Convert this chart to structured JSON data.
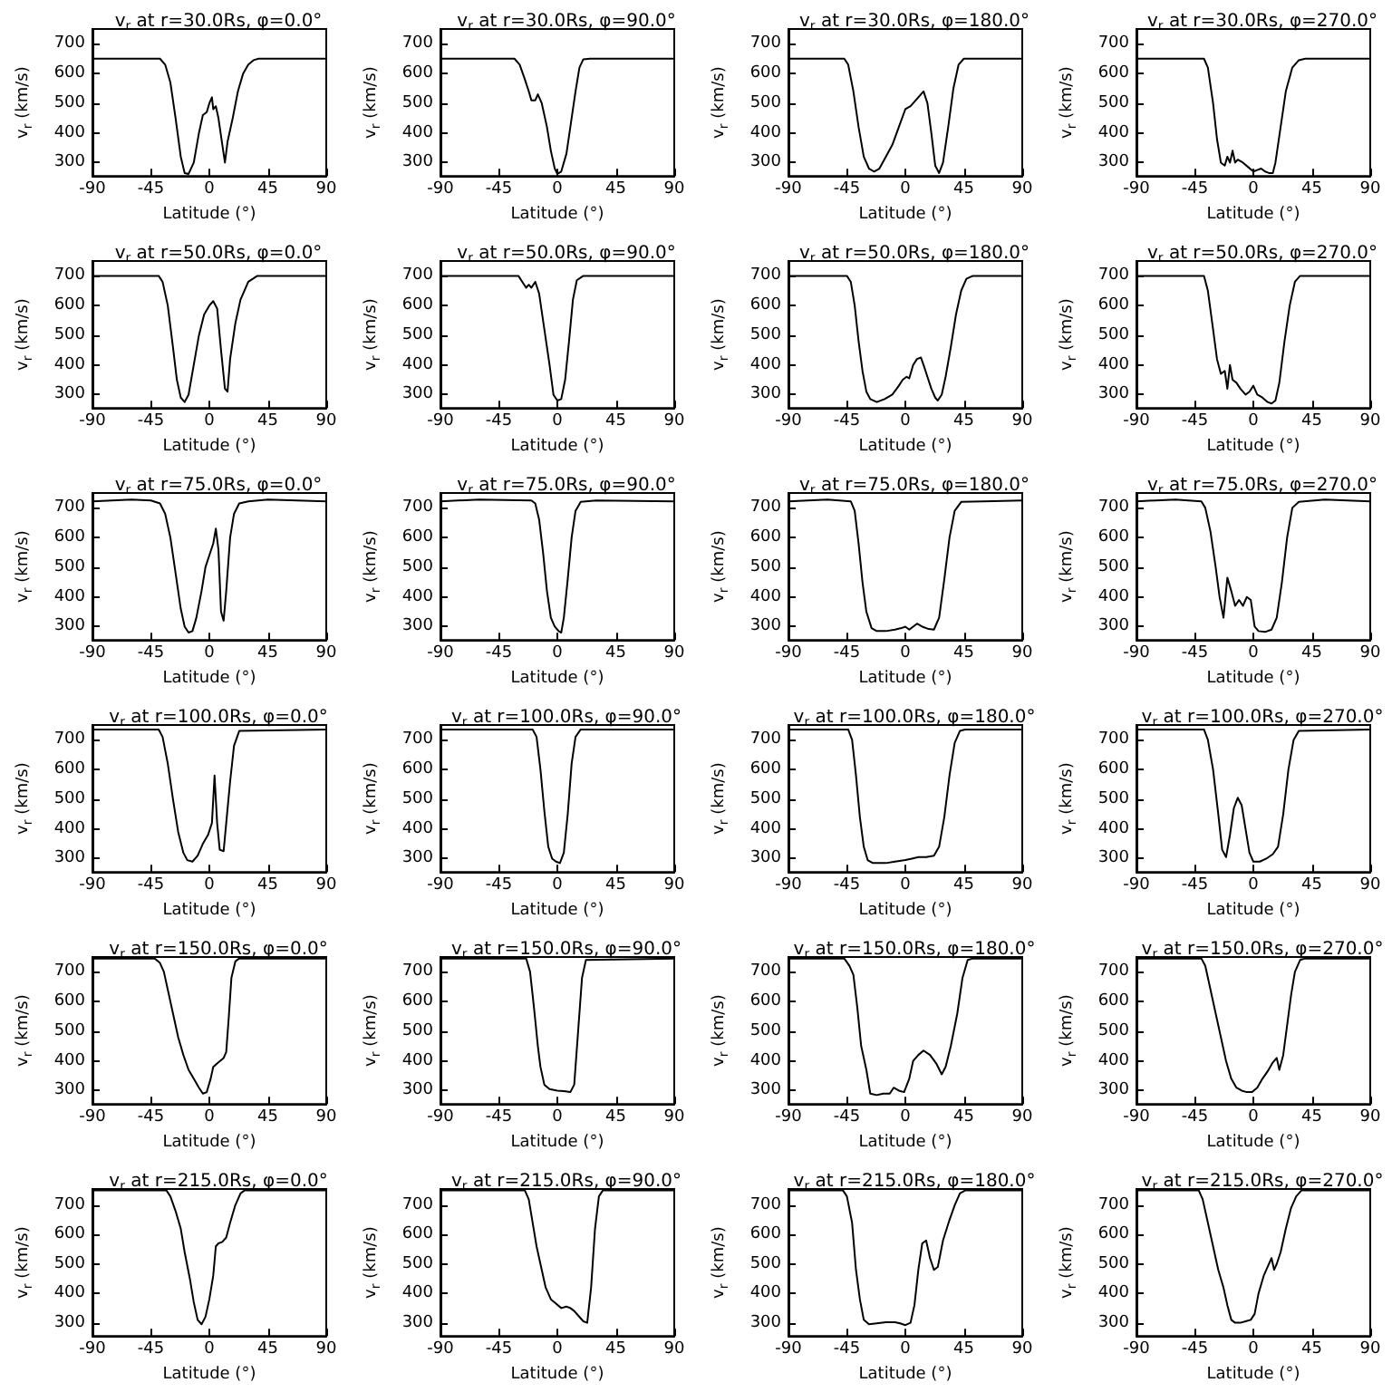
{
  "chart_data": [
    {
      "type": "line",
      "title": "v$_{r}$ at r=30.0Rs, φ=0.0°",
      "xlabel": "Latitude (°)",
      "ylabel": "v$_{r}$ (km/s)",
      "color": "#000000",
      "xlim": [
        -90,
        90
      ],
      "ylim": [
        255,
        750
      ],
      "xticks": [
        -90,
        -45,
        0,
        45,
        90
      ],
      "yticks": [
        300,
        400,
        500,
        600,
        700
      ],
      "x": [
        -90,
        -38,
        -34,
        -30,
        -26,
        -22,
        -19,
        -16,
        -12,
        -8,
        -5,
        -2,
        0,
        2,
        3,
        5,
        7,
        10,
        12,
        14,
        18,
        22,
        26,
        30,
        34,
        38,
        90
      ],
      "values": [
        650,
        650,
        630,
        570,
        450,
        320,
        265,
        262,
        300,
        400,
        460,
        470,
        500,
        520,
        480,
        490,
        450,
        360,
        300,
        370,
        450,
        540,
        600,
        630,
        645,
        650,
        650
      ]
    },
    {
      "type": "line",
      "title": "v$_{r}$ at r=30.0Rs, φ=90.0°",
      "xlabel": "Latitude (°)",
      "ylabel": "v$_{r}$ (km/s)",
      "color": "#000000",
      "xlim": [
        -90,
        90
      ],
      "ylim": [
        255,
        750
      ],
      "xticks": [
        -90,
        -45,
        0,
        45,
        90
      ],
      "yticks": [
        300,
        400,
        500,
        600,
        700
      ],
      "x": [
        -90,
        -33,
        -29,
        -25,
        -22,
        -20,
        -17,
        -15,
        -12,
        -8,
        -5,
        -2,
        0,
        3,
        7,
        10,
        14,
        17,
        20,
        25,
        90
      ],
      "values": [
        650,
        650,
        630,
        580,
        540,
        510,
        510,
        530,
        500,
        420,
        340,
        280,
        262,
        270,
        330,
        420,
        540,
        620,
        648,
        650,
        650
      ]
    },
    {
      "type": "line",
      "title": "v$_{r}$ at r=30.0Rs, φ=180.0°",
      "xlabel": "Latitude (°)",
      "ylabel": "v$_{r}$ (km/s)",
      "color": "#000000",
      "xlim": [
        -90,
        90
      ],
      "ylim": [
        255,
        750
      ],
      "xticks": [
        -90,
        -45,
        0,
        45,
        90
      ],
      "yticks": [
        300,
        400,
        500,
        600,
        700
      ],
      "x": [
        -90,
        -47,
        -44,
        -40,
        -36,
        -32,
        -28,
        -24,
        -20,
        -15,
        -10,
        -5,
        0,
        4,
        8,
        12,
        14,
        17,
        20,
        23,
        26,
        29,
        33,
        37,
        41,
        45,
        90
      ],
      "values": [
        650,
        650,
        630,
        540,
        420,
        320,
        280,
        270,
        280,
        320,
        360,
        420,
        480,
        490,
        510,
        530,
        540,
        500,
        400,
        290,
        265,
        300,
        420,
        550,
        630,
        650,
        650
      ]
    },
    {
      "type": "line",
      "title": "v$_{r}$ at r=30.0Rs, φ=270.0°",
      "xlabel": "Latitude (°)",
      "ylabel": "v$_{r}$ (km/s)",
      "color": "#000000",
      "xlim": [
        -90,
        90
      ],
      "ylim": [
        255,
        750
      ],
      "xticks": [
        -90,
        -45,
        0,
        45,
        90
      ],
      "yticks": [
        300,
        400,
        500,
        600,
        700
      ],
      "x": [
        -90,
        -38,
        -35,
        -31,
        -28,
        -25,
        -22,
        -20,
        -18,
        -16,
        -14,
        -12,
        -8,
        -4,
        0,
        3,
        6,
        9,
        12,
        15,
        17,
        21,
        25,
        30,
        35,
        40,
        90
      ],
      "values": [
        650,
        650,
        620,
        500,
        380,
        300,
        290,
        320,
        300,
        340,
        300,
        310,
        300,
        285,
        270,
        275,
        280,
        270,
        265,
        265,
        300,
        420,
        540,
        620,
        645,
        650,
        650
      ]
    },
    {
      "type": "line",
      "title": "v$_{r}$ at r=50.0Rs, φ=0.0°",
      "xlabel": "Latitude (°)",
      "ylabel": "v$_{r}$ (km/s)",
      "color": "#000000",
      "xlim": [
        -90,
        90
      ],
      "ylim": [
        255,
        750
      ],
      "xticks": [
        -90,
        -45,
        0,
        45,
        90
      ],
      "yticks": [
        300,
        400,
        500,
        600,
        700
      ],
      "x": [
        -90,
        -39,
        -36,
        -32,
        -28,
        -25,
        -22,
        -19,
        -16,
        -12,
        -8,
        -4,
        0,
        3,
        6,
        9,
        12,
        14,
        16,
        20,
        24,
        30,
        37,
        90
      ],
      "values": [
        700,
        700,
        680,
        600,
        460,
        350,
        290,
        275,
        300,
        400,
        500,
        570,
        600,
        615,
        590,
        450,
        320,
        310,
        420,
        540,
        620,
        680,
        700,
        700
      ]
    },
    {
      "type": "line",
      "title": "v$_{r}$ at r=50.0Rs, φ=90.0°",
      "xlabel": "Latitude (°)",
      "ylabel": "v$_{r}$ (km/s)",
      "color": "#000000",
      "xlim": [
        -90,
        90
      ],
      "ylim": [
        255,
        750
      ],
      "xticks": [
        -90,
        -45,
        0,
        45,
        90
      ],
      "yticks": [
        300,
        400,
        500,
        600,
        700
      ],
      "x": [
        -90,
        -30,
        -27,
        -24,
        -22,
        -20,
        -17,
        -14,
        -10,
        -6,
        -3,
        0,
        3,
        6,
        9,
        12,
        15,
        20,
        90
      ],
      "values": [
        700,
        700,
        680,
        660,
        670,
        660,
        680,
        640,
        520,
        400,
        300,
        280,
        285,
        350,
        480,
        620,
        685,
        700,
        700
      ]
    },
    {
      "type": "line",
      "title": "v$_{r}$ at r=50.0Rs, φ=180.0°",
      "xlabel": "Latitude (°)",
      "ylabel": "v$_{r}$ (km/s)",
      "color": "#000000",
      "xlim": [
        -90,
        90
      ],
      "ylim": [
        255,
        750
      ],
      "xticks": [
        -90,
        -45,
        0,
        45,
        90
      ],
      "yticks": [
        300,
        400,
        500,
        600,
        700
      ],
      "x": [
        -90,
        -45,
        -42,
        -39,
        -36,
        -33,
        -30,
        -27,
        -22,
        -16,
        -10,
        -5,
        -2,
        1,
        3,
        6,
        9,
        12,
        14,
        17,
        20,
        23,
        25,
        28,
        31,
        35,
        39,
        43,
        47,
        52,
        90
      ],
      "values": [
        700,
        700,
        680,
        600,
        480,
        380,
        310,
        285,
        275,
        285,
        300,
        330,
        350,
        360,
        355,
        400,
        420,
        425,
        400,
        360,
        320,
        290,
        280,
        300,
        360,
        460,
        570,
        650,
        690,
        700,
        700
      ]
    },
    {
      "type": "line",
      "title": "v$_{r}$ at r=50.0Rs, φ=270.0°",
      "xlabel": "Latitude (°)",
      "ylabel": "v$_{r}$ (km/s)",
      "color": "#000000",
      "xlim": [
        -90,
        90
      ],
      "ylim": [
        255,
        750
      ],
      "xticks": [
        -90,
        -45,
        0,
        45,
        90
      ],
      "yticks": [
        300,
        400,
        500,
        600,
        700
      ],
      "x": [
        -90,
        -38,
        -35,
        -31,
        -28,
        -25,
        -22,
        -20,
        -18,
        -16,
        -13,
        -10,
        -6,
        -3,
        0,
        3,
        7,
        11,
        14,
        17,
        20,
        24,
        28,
        32,
        36,
        90
      ],
      "values": [
        700,
        700,
        650,
        520,
        420,
        370,
        380,
        320,
        400,
        350,
        340,
        320,
        300,
        310,
        330,
        300,
        290,
        275,
        270,
        280,
        340,
        480,
        600,
        680,
        700,
        700
      ]
    },
    {
      "type": "line",
      "title": "v$_{r}$ at r=75.0Rs, φ=0.0°",
      "xlabel": "Latitude (°)",
      "ylabel": "v$_{r}$ (km/s)",
      "color": "#000000",
      "xlim": [
        -90,
        90
      ],
      "ylim": [
        255,
        750
      ],
      "xticks": [
        -90,
        -45,
        0,
        45,
        90
      ],
      "yticks": [
        300,
        400,
        500,
        600,
        700
      ],
      "x": [
        -90,
        -60,
        -45,
        -38,
        -34,
        -30,
        -26,
        -22,
        -19,
        -16,
        -13,
        -10,
        -6,
        -3,
        0,
        3,
        5,
        7,
        9,
        11,
        13,
        16,
        19,
        23,
        30,
        45,
        90
      ],
      "values": [
        722,
        728,
        725,
        715,
        680,
        600,
        480,
        360,
        300,
        280,
        285,
        330,
        420,
        500,
        540,
        580,
        630,
        560,
        350,
        320,
        420,
        600,
        680,
        715,
        722,
        728,
        722
      ]
    },
    {
      "type": "line",
      "title": "v$_{r}$ at r=75.0Rs, φ=90.0°",
      "xlabel": "Latitude (°)",
      "ylabel": "v$_{r}$ (km/s)",
      "color": "#000000",
      "xlim": [
        -90,
        90
      ],
      "ylim": [
        255,
        750
      ],
      "xticks": [
        -90,
        -45,
        0,
        45,
        90
      ],
      "yticks": [
        300,
        400,
        500,
        600,
        700
      ],
      "x": [
        -90,
        -60,
        -20,
        -17,
        -14,
        -11,
        -8,
        -5,
        -2,
        1,
        3,
        5,
        8,
        11,
        14,
        18,
        30,
        90
      ],
      "values": [
        722,
        728,
        725,
        715,
        660,
        550,
        420,
        330,
        300,
        285,
        280,
        330,
        460,
        600,
        690,
        720,
        725,
        722
      ]
    },
    {
      "type": "line",
      "title": "v$_{r}$ at r=75.0Rs, φ=180.0°",
      "xlabel": "Latitude (°)",
      "ylabel": "v$_{r}$ (km/s)",
      "color": "#000000",
      "xlim": [
        -90,
        90
      ],
      "ylim": [
        255,
        750
      ],
      "xticks": [
        -90,
        -45,
        0,
        45,
        90
      ],
      "yticks": [
        300,
        400,
        500,
        600,
        700
      ],
      "x": [
        -90,
        -60,
        -42,
        -39,
        -36,
        -33,
        -30,
        -26,
        -22,
        -15,
        -8,
        -3,
        0,
        3,
        6,
        9,
        13,
        18,
        22,
        26,
        30,
        34,
        38,
        43,
        60,
        90
      ],
      "values": [
        722,
        728,
        722,
        690,
        580,
        450,
        350,
        295,
        285,
        285,
        290,
        295,
        300,
        290,
        300,
        310,
        300,
        292,
        290,
        330,
        460,
        600,
        690,
        720,
        722,
        725
      ]
    },
    {
      "type": "line",
      "title": "v$_{r}$ at r=75.0Rs, φ=270.0°",
      "xlabel": "Latitude (°)",
      "ylabel": "v$_{r}$ (km/s)",
      "color": "#000000",
      "xlim": [
        -90,
        90
      ],
      "ylim": [
        255,
        750
      ],
      "xticks": [
        -90,
        -45,
        0,
        45,
        90
      ],
      "yticks": [
        300,
        400,
        500,
        600,
        700
      ],
      "x": [
        -90,
        -60,
        -40,
        -37,
        -33,
        -29,
        -26,
        -23,
        -20,
        -17,
        -14,
        -11,
        -8,
        -5,
        -2,
        1,
        4,
        9,
        14,
        18,
        22,
        26,
        30,
        35,
        55,
        90
      ],
      "values": [
        722,
        728,
        722,
        700,
        620,
        500,
        400,
        330,
        465,
        420,
        370,
        390,
        370,
        400,
        390,
        300,
        285,
        282,
        290,
        330,
        450,
        600,
        700,
        720,
        728,
        722
      ]
    },
    {
      "type": "line",
      "title": "v$_{r}$ at r=100.0Rs, φ=0.0°",
      "xlabel": "Latitude (°)",
      "ylabel": "v$_{r}$ (km/s)",
      "color": "#000000",
      "xlim": [
        -90,
        90
      ],
      "ylim": [
        255,
        750
      ],
      "xticks": [
        -90,
        -45,
        0,
        45,
        90
      ],
      "yticks": [
        300,
        400,
        500,
        600,
        700
      ],
      "x": [
        -90,
        -39,
        -36,
        -32,
        -28,
        -24,
        -20,
        -17,
        -13,
        -9,
        -5,
        -1,
        2,
        4,
        6,
        8,
        11,
        13,
        16,
        19,
        23,
        90
      ],
      "values": [
        735,
        735,
        710,
        620,
        500,
        390,
        320,
        295,
        290,
        310,
        350,
        380,
        420,
        580,
        420,
        330,
        325,
        420,
        560,
        680,
        730,
        735
      ]
    },
    {
      "type": "line",
      "title": "v$_{r}$ at r=100.0Rs, φ=90.0°",
      "xlabel": "Latitude (°)",
      "ylabel": "v$_{r}$ (km/s)",
      "color": "#000000",
      "xlim": [
        -90,
        90
      ],
      "ylim": [
        255,
        750
      ],
      "xticks": [
        -90,
        -45,
        0,
        45,
        90
      ],
      "yticks": [
        300,
        400,
        500,
        600,
        700
      ],
      "x": [
        -90,
        -19,
        -16,
        -13,
        -10,
        -7,
        -4,
        -1,
        2,
        5,
        8,
        11,
        14,
        18,
        90
      ],
      "values": [
        735,
        735,
        710,
        600,
        460,
        340,
        300,
        290,
        285,
        320,
        450,
        620,
        710,
        735,
        735
      ]
    },
    {
      "type": "line",
      "title": "v$_{r}$ at r=100.0Rs, φ=180.0°",
      "xlabel": "Latitude (°)",
      "ylabel": "v$_{r}$ (km/s)",
      "color": "#000000",
      "xlim": [
        -90,
        90
      ],
      "ylim": [
        255,
        750
      ],
      "xticks": [
        -90,
        -45,
        0,
        45,
        90
      ],
      "yticks": [
        300,
        400,
        500,
        600,
        700
      ],
      "x": [
        -90,
        -44,
        -41,
        -38,
        -35,
        -32,
        -29,
        -25,
        -15,
        -8,
        0,
        5,
        10,
        16,
        22,
        26,
        30,
        34,
        38,
        42,
        46,
        90
      ],
      "values": [
        735,
        735,
        700,
        580,
        440,
        340,
        295,
        285,
        285,
        290,
        295,
        300,
        305,
        305,
        310,
        340,
        440,
        580,
        690,
        730,
        735,
        735
      ]
    },
    {
      "type": "line",
      "title": "v$_{r}$ at r=100.0Rs, φ=270.0°",
      "xlabel": "Latitude (°)",
      "ylabel": "v$_{r}$ (km/s)",
      "color": "#000000",
      "xlim": [
        -90,
        90
      ],
      "ylim": [
        255,
        750
      ],
      "xticks": [
        -90,
        -45,
        0,
        45,
        90
      ],
      "yticks": [
        300,
        400,
        500,
        600,
        700
      ],
      "x": [
        -90,
        -38,
        -35,
        -31,
        -27,
        -24,
        -21,
        -18,
        -15,
        -12,
        -9,
        -6,
        -3,
        0,
        5,
        10,
        15,
        19,
        23,
        27,
        31,
        35,
        90
      ],
      "values": [
        735,
        735,
        700,
        600,
        450,
        330,
        305,
        380,
        470,
        505,
        480,
        400,
        320,
        290,
        290,
        300,
        315,
        340,
        450,
        600,
        700,
        730,
        735
      ]
    },
    {
      "type": "line",
      "title": "v$_{r}$ at r=150.0Rs, φ=0.0°",
      "xlabel": "Latitude (°)",
      "ylabel": "v$_{r}$ (km/s)",
      "color": "#000000",
      "xlim": [
        -90,
        90
      ],
      "ylim": [
        255,
        750
      ],
      "xticks": [
        -90,
        -45,
        0,
        45,
        90
      ],
      "yticks": [
        300,
        400,
        500,
        600,
        700
      ],
      "x": [
        -90,
        -42,
        -38,
        -35,
        -32,
        -28,
        -24,
        -20,
        -16,
        -12,
        -8,
        -5,
        -2,
        1,
        3,
        7,
        11,
        13,
        15,
        17,
        20,
        23,
        90
      ],
      "values": [
        745,
        745,
        730,
        700,
        640,
        560,
        480,
        420,
        370,
        340,
        310,
        290,
        295,
        340,
        380,
        395,
        410,
        430,
        550,
        680,
        735,
        745,
        745
      ]
    },
    {
      "type": "line",
      "title": "v$_{r}$ at r=150.0Rs, φ=90.0°",
      "xlabel": "Latitude (°)",
      "ylabel": "v$_{r}$ (km/s)",
      "color": "#000000",
      "xlim": [
        -90,
        90
      ],
      "ylim": [
        255,
        750
      ],
      "xticks": [
        -90,
        -45,
        0,
        45,
        90
      ],
      "yticks": [
        300,
        400,
        500,
        600,
        700
      ],
      "x": [
        -90,
        -24,
        -21,
        -18,
        -15,
        -13,
        -10,
        -6,
        0,
        5,
        10,
        13,
        16,
        19,
        22,
        90
      ],
      "values": [
        745,
        745,
        700,
        580,
        450,
        380,
        320,
        305,
        300,
        298,
        295,
        320,
        500,
        680,
        740,
        745
      ]
    },
    {
      "type": "line",
      "title": "v$_{r}$ at r=150.0Rs, φ=180.0°",
      "xlabel": "Latitude (°)",
      "ylabel": "v$_{r}$ (km/s)",
      "color": "#000000",
      "xlim": [
        -90,
        90
      ],
      "ylim": [
        255,
        750
      ],
      "xticks": [
        -90,
        -45,
        0,
        45,
        90
      ],
      "yticks": [
        300,
        400,
        500,
        600,
        700
      ],
      "x": [
        -90,
        -47,
        -43,
        -40,
        -37,
        -34,
        -30,
        -27,
        -22,
        -17,
        -12,
        -9,
        -5,
        -1,
        3,
        6,
        10,
        14,
        19,
        24,
        28,
        31,
        35,
        40,
        44,
        48,
        52,
        90
      ],
      "values": [
        745,
        745,
        720,
        690,
        580,
        450,
        370,
        290,
        285,
        290,
        290,
        310,
        300,
        295,
        340,
        400,
        420,
        435,
        420,
        390,
        355,
        380,
        450,
        560,
        680,
        740,
        745,
        745
      ]
    },
    {
      "type": "line",
      "title": "v$_{r}$ at r=150.0Rs, φ=270.0°",
      "xlabel": "Latitude (°)",
      "ylabel": "v$_{r}$ (km/s)",
      "color": "#000000",
      "xlim": [
        -90,
        90
      ],
      "ylim": [
        255,
        750
      ],
      "xticks": [
        -90,
        -45,
        0,
        45,
        90
      ],
      "yticks": [
        300,
        400,
        500,
        600,
        700
      ],
      "x": [
        -90,
        -40,
        -37,
        -33,
        -29,
        -25,
        -21,
        -17,
        -13,
        -9,
        -5,
        -1,
        3,
        7,
        11,
        15,
        18,
        20,
        23,
        26,
        29,
        32,
        36,
        40,
        90
      ],
      "values": [
        745,
        745,
        720,
        640,
        560,
        480,
        400,
        340,
        310,
        300,
        295,
        295,
        310,
        340,
        365,
        395,
        410,
        370,
        420,
        520,
        620,
        700,
        740,
        745,
        745
      ]
    },
    {
      "type": "line",
      "title": "v$_{r}$ at r=215.0Rs, φ=0.0°",
      "xlabel": "Latitude (°)",
      "ylabel": "v$_{r}$ (km/s)",
      "color": "#000000",
      "xlim": [
        -90,
        90
      ],
      "ylim": [
        255,
        755
      ],
      "xticks": [
        -90,
        -45,
        0,
        45,
        90
      ],
      "yticks": [
        300,
        400,
        500,
        600,
        700
      ],
      "x": [
        -90,
        -33,
        -30,
        -26,
        -22,
        -19,
        -15,
        -12,
        -9,
        -6,
        -3,
        0,
        3,
        5,
        7,
        10,
        13,
        16,
        20,
        24,
        27,
        90
      ],
      "values": [
        750,
        750,
        730,
        680,
        620,
        540,
        450,
        370,
        310,
        295,
        320,
        380,
        460,
        560,
        570,
        575,
        590,
        640,
        700,
        740,
        750,
        750
      ]
    },
    {
      "type": "line",
      "title": "v$_{r}$ at r=215.0Rs, φ=90.0°",
      "xlabel": "Latitude (°)",
      "ylabel": "v$_{r}$ (km/s)",
      "color": "#000000",
      "xlim": [
        -90,
        90
      ],
      "ylim": [
        255,
        755
      ],
      "xticks": [
        -90,
        -45,
        0,
        45,
        90
      ],
      "yticks": [
        300,
        400,
        500,
        600,
        700
      ],
      "x": [
        -90,
        -25,
        -22,
        -19,
        -16,
        -12,
        -9,
        -5,
        -1,
        3,
        7,
        10,
        13,
        16,
        20,
        23,
        26,
        29,
        32,
        35,
        90
      ],
      "values": [
        750,
        750,
        720,
        640,
        560,
        480,
        420,
        380,
        365,
        350,
        355,
        350,
        340,
        325,
        305,
        300,
        420,
        620,
        730,
        750,
        750
      ]
    },
    {
      "type": "line",
      "title": "v$_{r}$ at r=215.0Rs, φ=180.0°",
      "xlabel": "Latitude (°)",
      "ylabel": "v$_{r}$ (km/s)",
      "color": "#000000",
      "xlim": [
        -90,
        90
      ],
      "ylim": [
        255,
        755
      ],
      "xticks": [
        -90,
        -45,
        0,
        45,
        90
      ],
      "yticks": [
        300,
        400,
        500,
        600,
        700
      ],
      "x": [
        -90,
        -48,
        -45,
        -41,
        -38,
        -35,
        -32,
        -28,
        -22,
        -15,
        -8,
        -4,
        0,
        4,
        7,
        10,
        13,
        16,
        19,
        22,
        25,
        29,
        34,
        38,
        42,
        46,
        90
      ],
      "values": [
        750,
        750,
        730,
        640,
        480,
        380,
        310,
        295,
        298,
        302,
        302,
        298,
        292,
        300,
        360,
        480,
        570,
        580,
        520,
        480,
        490,
        580,
        650,
        700,
        740,
        750,
        750
      ]
    },
    {
      "type": "line",
      "title": "v$_{r}$ at r=215.0Rs, φ=270.0°",
      "xlabel": "Latitude (°)",
      "ylabel": "v$_{r}$ (km/s)",
      "color": "#000000",
      "xlim": [
        -90,
        90
      ],
      "ylim": [
        255,
        755
      ],
      "xticks": [
        -90,
        -45,
        0,
        45,
        90
      ],
      "yticks": [
        300,
        400,
        500,
        600,
        700
      ],
      "x": [
        -90,
        -42,
        -39,
        -35,
        -31,
        -27,
        -23,
        -20,
        -17,
        -14,
        -10,
        -6,
        -2,
        1,
        4,
        8,
        11,
        14,
        16,
        18,
        21,
        25,
        29,
        33,
        37,
        90
      ],
      "values": [
        750,
        750,
        720,
        640,
        560,
        480,
        420,
        360,
        310,
        300,
        300,
        305,
        310,
        330,
        400,
        460,
        490,
        520,
        480,
        500,
        540,
        620,
        690,
        730,
        750,
        750
      ]
    }
  ]
}
